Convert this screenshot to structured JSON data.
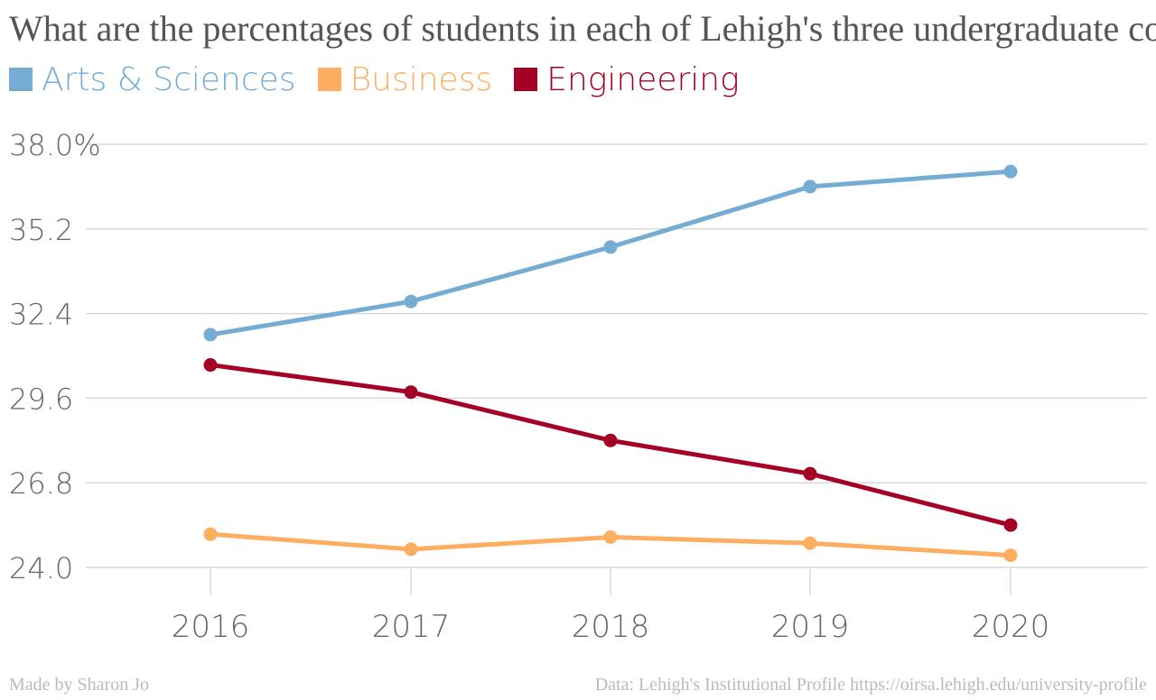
{
  "title": "What are the percentages of students in each of Lehigh's three undergraduate colleges?",
  "footer": {
    "credit": "Made by Sharon Jo",
    "source": "Data: Lehigh's Institutional Profile https://oirsa.lehigh.edu/university-profile"
  },
  "chart_data": {
    "type": "line",
    "title": "What are the percentages of students in each of Lehigh's three undergraduate colleges?",
    "xlabel": "",
    "ylabel": "",
    "x": [
      "2016",
      "2017",
      "2018",
      "2019",
      "2020"
    ],
    "ylim": [
      24.0,
      38.0
    ],
    "yticks": [
      "38.0%",
      "35.2",
      "32.4",
      "29.6",
      "26.8",
      "24.0"
    ],
    "ytick_values": [
      38.0,
      35.2,
      32.4,
      29.6,
      26.8,
      24.0
    ],
    "grid": true,
    "legend_position": "top-left",
    "series": [
      {
        "name": "Arts & Sciences",
        "color": "#74acd4",
        "values": [
          31.7,
          32.8,
          34.6,
          36.6,
          37.1
        ]
      },
      {
        "name": "Business",
        "color": "#fdae61",
        "values": [
          25.1,
          24.6,
          25.0,
          24.8,
          24.4
        ]
      },
      {
        "name": "Engineering",
        "color": "#a50026",
        "values": [
          30.7,
          29.8,
          28.2,
          27.1,
          25.4
        ]
      }
    ]
  }
}
